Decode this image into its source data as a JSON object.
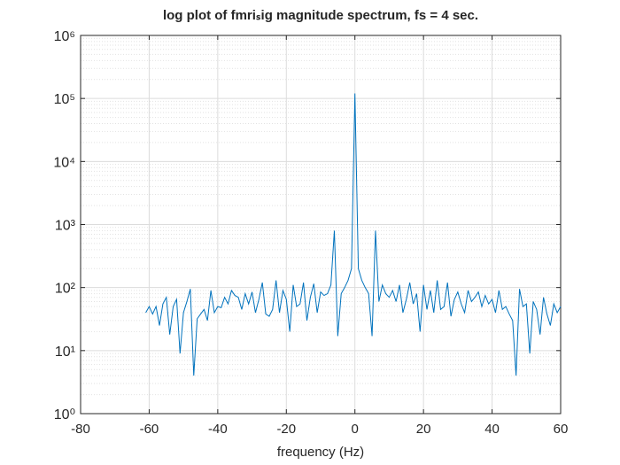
{
  "chart_data": {
    "type": "line",
    "title": "log plot of fmriₛig magnitude spectrum, fs = 4 sec.",
    "x_label": "frequency (Hz)",
    "log_y": true,
    "grid": true,
    "minor_grid": true,
    "xlim": [
      -80,
      60
    ],
    "xticks": [
      -80,
      -60,
      -40,
      -20,
      0,
      20,
      40,
      60
    ],
    "ylim": [
      1,
      1000000
    ],
    "yticks": [
      {
        "value": 1,
        "label": "10⁰"
      },
      {
        "value": 10,
        "label": "10¹"
      },
      {
        "value": 100,
        "label": "10²"
      },
      {
        "value": 1000,
        "label": "10³"
      },
      {
        "value": 10000,
        "label": "10⁴"
      },
      {
        "value": 100000,
        "label": "10⁵"
      },
      {
        "value": 1000000,
        "label": "10⁶"
      }
    ],
    "yminorticks": [
      2,
      3,
      4,
      5,
      6,
      7,
      8,
      9,
      20,
      30,
      40,
      50,
      60,
      70,
      80,
      90,
      200,
      300,
      400,
      500,
      600,
      700,
      800,
      900,
      2000,
      3000,
      4000,
      5000,
      6000,
      7000,
      8000,
      9000,
      20000,
      30000,
      40000,
      50000,
      60000,
      70000,
      80000,
      90000,
      200000,
      300000,
      400000,
      500000,
      600000,
      700000,
      800000,
      900000
    ],
    "x": [
      -61,
      -60,
      -59,
      -58,
      -57,
      -56,
      -55,
      -54,
      -53,
      -52,
      -51,
      -50,
      -49,
      -48,
      -47,
      -46,
      -45,
      -44,
      -43,
      -42,
      -41,
      -40,
      -39,
      -38,
      -37,
      -36,
      -35,
      -34,
      -33,
      -32,
      -31,
      -30,
      -29,
      -28,
      -27,
      -26,
      -25,
      -24,
      -23,
      -22,
      -21,
      -20,
      -19,
      -18,
      -17,
      -16,
      -15,
      -14,
      -13,
      -12,
      -11,
      -10,
      -9,
      -8,
      -7,
      -6,
      -5,
      -4,
      -3,
      -2,
      -1,
      0,
      1,
      2,
      3,
      4,
      5,
      6,
      7,
      8,
      9,
      10,
      11,
      12,
      13,
      14,
      15,
      16,
      17,
      18,
      19,
      20,
      21,
      22,
      23,
      24,
      25,
      26,
      27,
      28,
      29,
      30,
      31,
      32,
      33,
      34,
      35,
      36,
      37,
      38,
      39,
      40,
      41,
      42,
      43,
      44,
      45,
      46,
      47,
      48,
      49,
      50,
      51,
      52,
      53,
      54,
      55,
      56,
      57,
      58,
      59,
      60
    ],
    "series": [
      {
        "color": "#0072bd",
        "values": [
          40,
          50,
          38,
          50,
          25,
          55,
          70,
          18,
          50,
          65,
          9,
          40,
          60,
          95,
          4,
          32,
          38,
          45,
          30,
          90,
          40,
          50,
          48,
          70,
          55,
          90,
          75,
          70,
          45,
          80,
          55,
          85,
          40,
          65,
          120,
          38,
          35,
          45,
          130,
          40,
          90,
          65,
          20,
          110,
          50,
          55,
          120,
          30,
          70,
          115,
          40,
          85,
          75,
          80,
          110,
          800,
          17,
          80,
          100,
          130,
          200,
          120000,
          200,
          130,
          100,
          80,
          17,
          800,
          60,
          110,
          80,
          70,
          90,
          60,
          110,
          40,
          65,
          120,
          55,
          80,
          20,
          110,
          45,
          90,
          40,
          130,
          45,
          50,
          120,
          35,
          65,
          85,
          55,
          40,
          90,
          60,
          70,
          85,
          50,
          75,
          55,
          65,
          40,
          90,
          45,
          50,
          38,
          30,
          4,
          95,
          50,
          55,
          9,
          60,
          45,
          18,
          70,
          38,
          25,
          55,
          40,
          50
        ]
      }
    ]
  }
}
